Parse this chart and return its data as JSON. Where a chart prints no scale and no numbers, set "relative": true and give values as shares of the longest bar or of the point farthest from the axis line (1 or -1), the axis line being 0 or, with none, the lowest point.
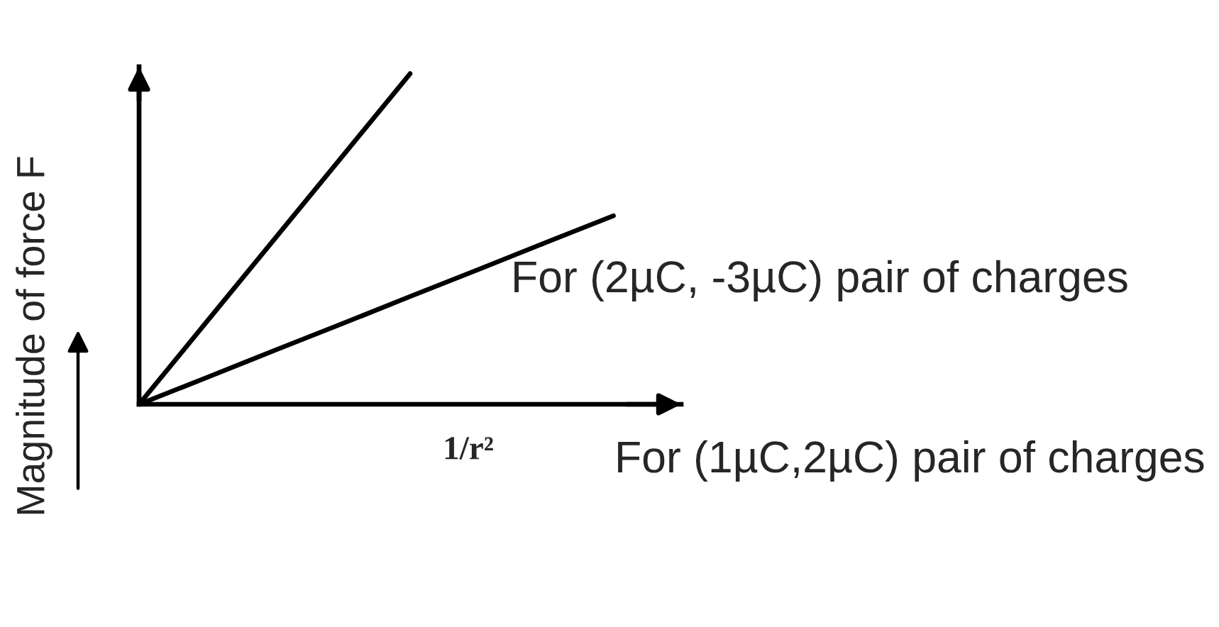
{
  "chart_data": {
    "type": "line",
    "relative": true,
    "categories": [
      null,
      null,
      null,
      null,
      null,
      null,
      null,
      null
    ],
    "series": [
      {
        "color": "#000000",
        "values": [
          0,
          0.25,
          0.5,
          0.75,
          1,
          null,
          null,
          null
        ]
      },
      {
        "color": "#000000",
        "values": [
          0,
          0.081,
          0.163,
          0.244,
          0.326,
          0.407,
          0.489,
          0.57
        ]
      }
    ],
    "xlabel": "1/r²",
    "ylabel": "Magnitude of force F",
    "annotations": [
      "For (2µC, -3µC) pair of charges",
      "For (1µC,2µC) pair of charges"
    ]
  }
}
